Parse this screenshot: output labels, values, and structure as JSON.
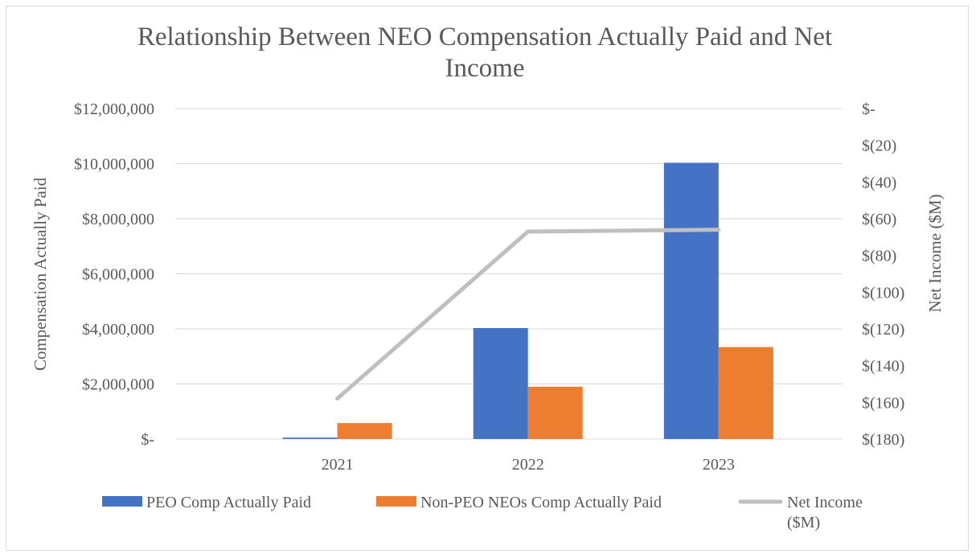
{
  "chart_data": {
    "type": "bar",
    "title_lines": [
      "Relationship Between NEO Compensation Actually Paid and Net",
      "Income"
    ],
    "categories": [
      "2021",
      "2022",
      "2023"
    ],
    "series": [
      {
        "name": "PEO Comp Actually Paid",
        "type": "bar",
        "axis": "left",
        "color": "#4472c4",
        "values": [
          50000,
          4030000,
          10030000
        ]
      },
      {
        "name": "Non-PEO NEOs Comp Actually Paid",
        "type": "bar",
        "axis": "left",
        "color": "#ed7d31",
        "values": [
          580000,
          1900000,
          3340000
        ]
      },
      {
        "name_lines": [
          "Net Income",
          "($M)"
        ],
        "type": "line",
        "axis": "right",
        "color": "#bfbfbf",
        "values": [
          -158,
          -67,
          -66
        ]
      }
    ],
    "y_left": {
      "label": "Compensation Actually Paid",
      "ylim": [
        0,
        12000000
      ],
      "ticks": [
        0,
        2000000,
        4000000,
        6000000,
        8000000,
        10000000,
        12000000
      ],
      "tick_labels": [
        "$-",
        "$2,000,000",
        "$4,000,000",
        "$6,000,000",
        "$8,000,000",
        "$10,000,000",
        "$12,000,000"
      ]
    },
    "y_right": {
      "label": "Net Income ($M)",
      "ylim": [
        -180,
        0
      ],
      "ticks": [
        -180,
        -160,
        -140,
        -120,
        -100,
        -80,
        -60,
        -40,
        -20,
        0
      ],
      "tick_labels": [
        "$(180)",
        "$(160)",
        "$(140)",
        "$(120)",
        "$(100)",
        "$(80)",
        "$(60)",
        "$(40)",
        "$(20)",
        "$-"
      ]
    },
    "grid": true,
    "legend_position": "bottom"
  }
}
